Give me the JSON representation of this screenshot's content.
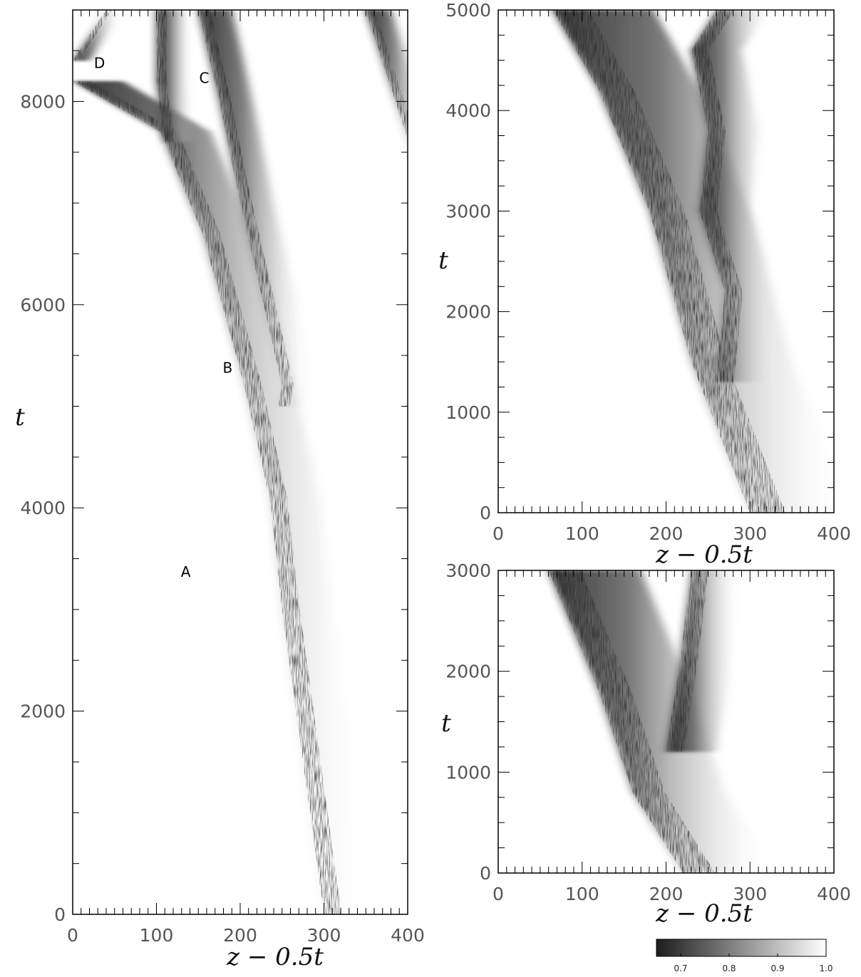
{
  "chart_data": [
    {
      "type": "heatmap",
      "panel": "left",
      "xlabel": "z − 0.5t",
      "ylabel": "t",
      "xlim": [
        0,
        400
      ],
      "ylim": [
        0,
        8900
      ],
      "xticks": [
        "0",
        "100",
        "200",
        "300",
        "400"
      ],
      "yticks": [
        "0",
        "2000",
        "4000",
        "6000",
        "8000"
      ],
      "xtick_values": [
        0,
        100,
        200,
        300,
        400
      ],
      "ytick_values": [
        0,
        2000,
        4000,
        6000,
        8000
      ],
      "annotations": [
        {
          "text": "A",
          "x": 135,
          "y": 3320
        },
        {
          "text": "B",
          "x": 185,
          "y": 5330
        },
        {
          "text": "C",
          "x": 157,
          "y": 8180
        },
        {
          "text": "D",
          "x": 32,
          "y": 8330
        }
      ],
      "fronts": [
        {
          "points": [
            [
              300,
              0
            ],
            [
              250,
              3000
            ],
            [
              235,
              4100
            ],
            [
              205,
              5200
            ],
            [
              155,
              6700
            ],
            [
              105,
              7700
            ],
            [
              0,
              8200
            ]
          ],
          "width": 60
        },
        {
          "points": [
            [
              245,
              5000
            ],
            [
              250,
              5200
            ],
            [
              228,
              6000
            ],
            [
              200,
              7000
            ],
            [
              175,
              8000
            ],
            [
              150,
              8900
            ]
          ],
          "width": 40
        },
        {
          "points": [
            [
              110,
              7600
            ],
            [
              100,
              8200
            ],
            [
              100,
              8900
            ]
          ],
          "width": 35
        },
        {
          "points": [
            [
              405,
              7500
            ],
            [
              350,
              8900
            ]
          ],
          "width": 30
        },
        {
          "points": [
            [
              40,
              8900
            ],
            [
              0,
              8400
            ]
          ],
          "width": 20
        }
      ]
    },
    {
      "type": "heatmap",
      "panel": "top-right",
      "xlabel": "z − 0.5t",
      "ylabel": "t",
      "xlim": [
        0,
        400
      ],
      "ylim": [
        0,
        5000
      ],
      "xticks": [
        "0",
        "100",
        "200",
        "300",
        "400"
      ],
      "yticks": [
        "0",
        "1000",
        "2000",
        "3000",
        "4000",
        "5000"
      ],
      "xtick_values": [
        0,
        100,
        200,
        300,
        400
      ],
      "ytick_values": [
        0,
        1000,
        2000,
        3000,
        4000,
        5000
      ],
      "fronts": [
        {
          "points": [
            [
              300,
              0
            ],
            [
              230,
              1500
            ],
            [
              180,
              3000
            ],
            [
              120,
              4200
            ],
            [
              65,
              5000
            ]
          ],
          "width": 120
        },
        {
          "points": [
            [
              260,
              1300
            ],
            [
              270,
              2200
            ],
            [
              240,
              3000
            ],
            [
              250,
              3800
            ],
            [
              230,
              4600
            ],
            [
              260,
              5000
            ]
          ],
          "width": 60
        }
      ]
    },
    {
      "type": "heatmap",
      "panel": "bottom-right",
      "xlabel": "z − 0.5t",
      "ylabel": "t",
      "xlim": [
        0,
        400
      ],
      "ylim": [
        0,
        3000
      ],
      "xticks": [
        "0",
        "100",
        "200",
        "300",
        "400"
      ],
      "yticks": [
        "0",
        "1000",
        "2000",
        "3000"
      ],
      "xtick_values": [
        0,
        100,
        200,
        300,
        400
      ],
      "ytick_values": [
        0,
        1000,
        2000,
        3000
      ],
      "fronts": [
        {
          "points": [
            [
              220,
              0
            ],
            [
              160,
              800
            ],
            [
              120,
              1800
            ],
            [
              60,
              3000
            ]
          ],
          "width": 110
        },
        {
          "points": [
            [
              200,
              1200
            ],
            [
              215,
              2000
            ],
            [
              230,
              3000
            ]
          ],
          "width": 60
        }
      ]
    }
  ],
  "colorbar": {
    "min": 0.65,
    "max": 1.0,
    "ticks": [
      "0.7",
      "0.8",
      "0.9",
      "1.0"
    ],
    "tick_values": [
      0.7,
      0.8,
      0.9,
      1.0
    ],
    "color_low": "#1c1c1c",
    "color_high": "#ffffff"
  }
}
